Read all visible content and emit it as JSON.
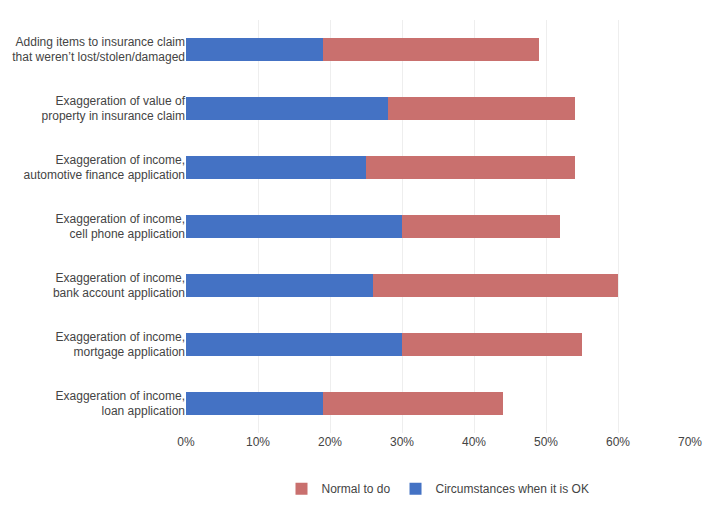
{
  "chart_data": {
    "type": "bar",
    "orientation": "horizontal",
    "stacked": true,
    "categories": [
      "Adding items to insurance claim\nthat weren’t lost/stolen/damaged",
      "Exaggeration of value of\nproperty in insurance claim",
      "Exaggeration of income,\nautomotive finance application",
      "Exaggeration of income,\ncell phone application",
      "Exaggeration of income,\nbank account application",
      "Exaggeration of income,\nmortgage application",
      "Exaggeration of income,\nloan application"
    ],
    "series": [
      {
        "name": "Circumstances when it is OK",
        "color": "#4472C4",
        "values": [
          19,
          28,
          25,
          30,
          26,
          30,
          19
        ]
      },
      {
        "name": "Normal to do",
        "color": "#C9706E",
        "values": [
          30,
          26,
          29,
          22,
          34,
          25,
          25
        ]
      }
    ],
    "xlim": [
      0,
      70
    ],
    "xticks": [
      {
        "value": 0,
        "label": "0%"
      },
      {
        "value": 10,
        "label": "10%"
      },
      {
        "value": 20,
        "label": "20%"
      },
      {
        "value": 30,
        "label": "30%"
      },
      {
        "value": 40,
        "label": "40%"
      },
      {
        "value": 50,
        "label": "50%"
      },
      {
        "value": 60,
        "label": "60%"
      },
      {
        "value": 70,
        "label": "70%"
      }
    ],
    "grid": true,
    "legend": "bottom"
  }
}
